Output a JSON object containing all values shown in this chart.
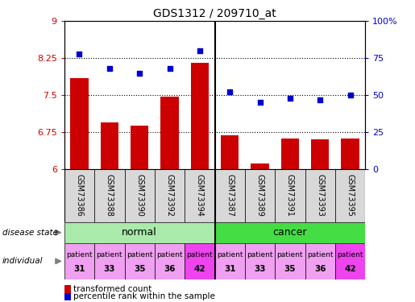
{
  "title": "GDS1312 / 209710_at",
  "samples": [
    "GSM73386",
    "GSM73388",
    "GSM73390",
    "GSM73392",
    "GSM73394",
    "GSM73387",
    "GSM73389",
    "GSM73391",
    "GSM73393",
    "GSM73395"
  ],
  "transformed_count": [
    7.85,
    6.95,
    6.88,
    7.47,
    8.15,
    6.68,
    6.12,
    6.62,
    6.6,
    6.62
  ],
  "percentile_rank": [
    78,
    68,
    65,
    68,
    80,
    52,
    45,
    48,
    47,
    50
  ],
  "ylim_left": [
    6,
    9
  ],
  "ylim_right": [
    0,
    100
  ],
  "yticks_left": [
    6,
    6.75,
    7.5,
    8.25,
    9
  ],
  "yticks_right": [
    0,
    25,
    50,
    75,
    100
  ],
  "hlines": [
    6.75,
    7.5,
    8.25
  ],
  "bar_color": "#cc0000",
  "dot_color": "#0000cc",
  "disease_split": 5,
  "normal_color": "#aaeaaa",
  "cancer_color": "#44dd44",
  "individual_colors_normal": [
    "#f0a0f0",
    "#f0a0f0",
    "#f0a0f0",
    "#f0a0f0",
    "#ee44ee"
  ],
  "individual_colors_cancer": [
    "#f0a0f0",
    "#f0a0f0",
    "#f0a0f0",
    "#f0a0f0",
    "#ee44ee"
  ],
  "patients_normal": [
    "patient\n31",
    "patient\n33",
    "patient\n35",
    "patient\n36",
    "patient\n42"
  ],
  "patients_cancer": [
    "patient\n31",
    "patient\n33",
    "patient\n35",
    "patient\n36",
    "patient\n42"
  ],
  "legend_bar_label": "transformed count",
  "legend_dot_label": "percentile rank within the sample",
  "left_tick_color": "#cc0000",
  "right_tick_color": "#0000cc",
  "label_disease_state": "disease state",
  "label_individual": "individual"
}
